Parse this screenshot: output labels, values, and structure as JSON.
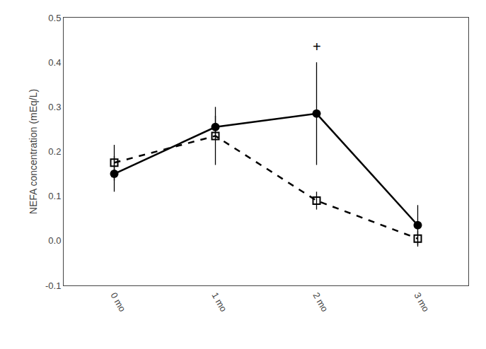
{
  "chart_data": {
    "type": "line",
    "ylabel": "NEFA concentration (mEq/L)",
    "x": [
      0,
      1,
      2,
      3
    ],
    "series": [
      {
        "color": "#000000",
        "marker": "square-open",
        "line_style": "dash",
        "values": [
          0.175,
          0.235,
          0.09,
          0.005
        ],
        "yerr": [
          0.04,
          0.065,
          0.02,
          0.018
        ]
      },
      {
        "color": "#000000",
        "marker": "circle",
        "line_style": "solid",
        "values": [
          0.15,
          0.255,
          0.285,
          0.035
        ],
        "yerr": [
          0.04,
          0.025,
          0.115,
          0.045
        ]
      }
    ],
    "xlim": [
      -0.5,
      3.5
    ],
    "xticks": [
      {
        "value": 0,
        "label": "0 mo"
      },
      {
        "value": 1,
        "label": "1 mo"
      },
      {
        "value": 2,
        "label": "2 mo"
      },
      {
        "value": 3,
        "label": "3 mo"
      }
    ],
    "ylim": [
      -0.1,
      0.5
    ],
    "yticks": [
      -0.1,
      {
        "value": 0,
        "label": "0.0"
      },
      0.1,
      0.2,
      0.3,
      0.4,
      0.5
    ],
    "annotations": [
      {
        "text": "+",
        "x": 2,
        "y": 0.435
      }
    ],
    "grid": false
  }
}
